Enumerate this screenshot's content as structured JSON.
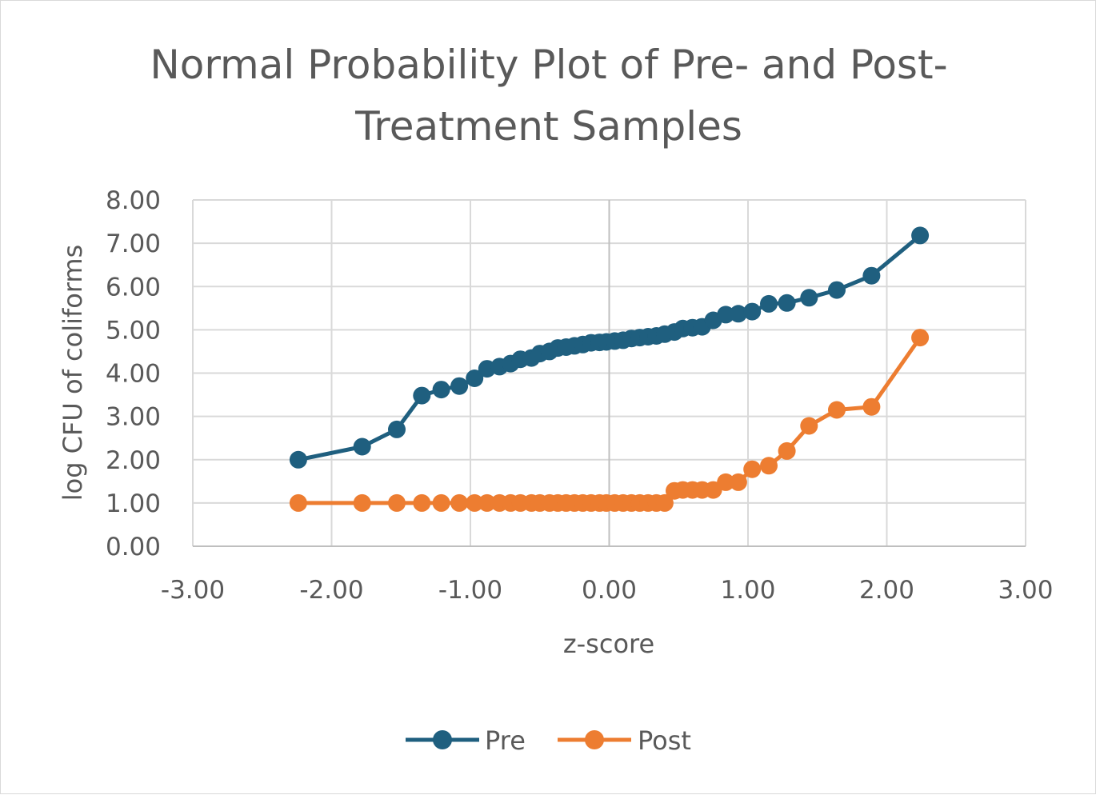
{
  "chart_data": {
    "type": "scatter",
    "title_lines": [
      "Normal Probability Plot of Pre- and Post-",
      "Treatment Samples"
    ],
    "xlabel": "z-score",
    "ylabel": "log CFU of coliforms",
    "xlim": [
      -3,
      3
    ],
    "ylim": [
      0,
      8
    ],
    "x_ticks": [
      "-3.00",
      "-2.00",
      "-1.00",
      "0.00",
      "1.00",
      "2.00",
      "3.00"
    ],
    "y_ticks": [
      "0.00",
      "1.00",
      "2.00",
      "3.00",
      "4.00",
      "5.00",
      "6.00",
      "7.00",
      "8.00"
    ],
    "grid": true,
    "legend_position": "bottom",
    "series": [
      {
        "name": "Pre",
        "color": "#1f5f7f",
        "x": [
          -2.24,
          -1.78,
          -1.53,
          -1.35,
          -1.21,
          -1.08,
          -0.97,
          -0.88,
          -0.79,
          -0.71,
          -0.64,
          -0.56,
          -0.5,
          -0.43,
          -0.37,
          -0.31,
          -0.25,
          -0.19,
          -0.13,
          -0.07,
          -0.02,
          0.04,
          0.1,
          0.16,
          0.22,
          0.28,
          0.34,
          0.4,
          0.47,
          0.53,
          0.6,
          0.67,
          0.75,
          0.84,
          0.93,
          1.03,
          1.15,
          1.28,
          1.44,
          1.64,
          1.89,
          2.24
        ],
        "y": [
          2.0,
          2.3,
          2.7,
          3.48,
          3.62,
          3.7,
          3.88,
          4.1,
          4.15,
          4.22,
          4.32,
          4.35,
          4.45,
          4.5,
          4.58,
          4.6,
          4.63,
          4.66,
          4.7,
          4.71,
          4.72,
          4.74,
          4.76,
          4.8,
          4.82,
          4.84,
          4.86,
          4.9,
          4.95,
          5.03,
          5.05,
          5.07,
          5.22,
          5.35,
          5.37,
          5.42,
          5.6,
          5.62,
          5.74,
          5.92,
          6.25,
          7.18
        ]
      },
      {
        "name": "Post",
        "color": "#ed7d31",
        "x": [
          -2.24,
          -1.78,
          -1.53,
          -1.35,
          -1.21,
          -1.08,
          -0.97,
          -0.88,
          -0.79,
          -0.71,
          -0.64,
          -0.56,
          -0.5,
          -0.43,
          -0.37,
          -0.31,
          -0.25,
          -0.19,
          -0.13,
          -0.07,
          -0.02,
          0.04,
          0.1,
          0.16,
          0.22,
          0.28,
          0.34,
          0.4,
          0.47,
          0.53,
          0.6,
          0.67,
          0.75,
          0.84,
          0.93,
          1.03,
          1.15,
          1.28,
          1.44,
          1.64,
          1.89,
          2.24
        ],
        "y": [
          1.0,
          1.0,
          1.0,
          1.0,
          1.0,
          1.0,
          1.0,
          1.0,
          1.0,
          1.0,
          1.0,
          1.0,
          1.0,
          1.0,
          1.0,
          1.0,
          1.0,
          1.0,
          1.0,
          1.0,
          1.0,
          1.0,
          1.0,
          1.0,
          1.0,
          1.0,
          1.0,
          1.0,
          1.28,
          1.3,
          1.3,
          1.3,
          1.3,
          1.48,
          1.48,
          1.78,
          1.86,
          2.2,
          2.78,
          3.15,
          3.22,
          4.82
        ]
      }
    ]
  }
}
